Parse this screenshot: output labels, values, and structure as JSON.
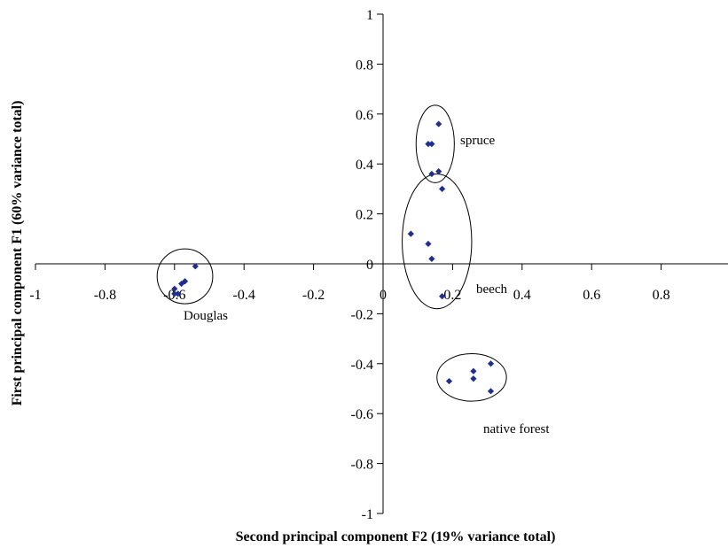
{
  "chart_data": {
    "type": "scatter",
    "xlabel": "Second principal component F2 (19% variance total)",
    "ylabel": "First principal component F1 (60% variance total)",
    "xlim": [
      -1,
      1
    ],
    "ylim": [
      -1,
      1
    ],
    "x_ticks": [
      -1,
      -0.8,
      -0.6,
      -0.4,
      -0.2,
      0,
      0.2,
      0.4,
      0.6,
      0.8
    ],
    "x_tick_labels": [
      "-1",
      "-0.8",
      "-0.6",
      "-0.4",
      "-0.2",
      "0",
      "0.2",
      "0.4",
      "0.6",
      "0.8"
    ],
    "y_ticks": [
      1,
      0.8,
      0.6,
      0.4,
      0.2,
      0,
      -0.2,
      -0.4,
      -0.6,
      -0.8,
      -1
    ],
    "y_tick_labels": [
      "1",
      "0.8",
      "0.6",
      "0.4",
      "0.2",
      "0",
      "-0.2",
      "-0.4",
      "-0.6",
      "-0.8",
      "-1"
    ],
    "grid": false,
    "marker_color": "#1f2f8f",
    "groups": [
      {
        "label": "Douglas",
        "points": [
          [
            -0.54,
            -0.01
          ],
          [
            -0.57,
            -0.07
          ],
          [
            -0.58,
            -0.08
          ],
          [
            -0.6,
            -0.1
          ],
          [
            -0.59,
            -0.12
          ],
          [
            -0.6,
            -0.12
          ]
        ],
        "ellipse": {
          "cx": -0.57,
          "cy": -0.05,
          "rx": 0.08,
          "ry": 0.11
        }
      },
      {
        "label": "spruce",
        "points": [
          [
            0.16,
            0.56
          ],
          [
            0.13,
            0.48
          ],
          [
            0.14,
            0.48
          ],
          [
            0.16,
            0.37
          ],
          [
            0.14,
            0.36
          ]
        ],
        "ellipse": {
          "cx": 0.15,
          "cy": 0.48,
          "rx": 0.055,
          "ry": 0.155
        }
      },
      {
        "label": "beech",
        "points": [
          [
            0.17,
            0.3
          ],
          [
            0.08,
            0.12
          ],
          [
            0.13,
            0.08
          ],
          [
            0.14,
            0.02
          ],
          [
            0.17,
            -0.13
          ]
        ],
        "ellipse": {
          "cx": 0.155,
          "cy": 0.09,
          "rx": 0.1,
          "ry": 0.27
        }
      },
      {
        "label": "native forest",
        "points": [
          [
            0.31,
            -0.4
          ],
          [
            0.26,
            -0.43
          ],
          [
            0.26,
            -0.46
          ],
          [
            0.19,
            -0.47
          ],
          [
            0.31,
            -0.51
          ]
        ],
        "ellipse": {
          "cx": 0.255,
          "cy": -0.455,
          "rx": 0.1,
          "ry": 0.095
        }
      }
    ]
  }
}
